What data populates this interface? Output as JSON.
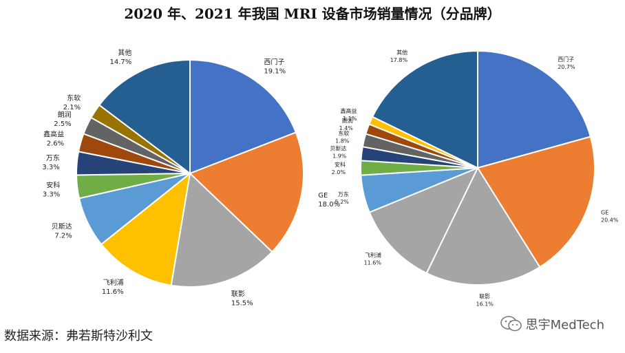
{
  "title": "2020 年、2021 年我国 MRI 设备市场销量情况（分品牌）",
  "source": "数据来源：弗若斯特沙利文",
  "watermark": "思宇MedTech",
  "chart_data": [
    {
      "type": "pie",
      "title": "2020",
      "categories": [
        "西门子",
        "GE",
        "联影",
        "飞利浦",
        "贝斯达",
        "安科",
        "万东",
        "鑫高益",
        "朗润",
        "东软",
        "其他"
      ],
      "values": [
        19.1,
        18.0,
        15.5,
        11.6,
        7.2,
        3.3,
        3.3,
        2.6,
        2.5,
        2.1,
        14.7
      ],
      "labels": [
        "19.1%",
        "18.0%",
        "15.5%",
        "11.6%",
        "7.2%",
        "3.3%",
        "3.3%",
        "2.6%",
        "2.5%",
        "2.1%",
        "14.7%"
      ],
      "colors": [
        "#4472C4",
        "#ED7D31",
        "#A5A5A5",
        "#FFC000",
        "#5B9BD5",
        "#70AD47",
        "#264478",
        "#9E480E",
        "#636363",
        "#997300",
        "#255E91"
      ]
    },
    {
      "type": "pie",
      "title": "2021",
      "categories": [
        "西门子",
        "GE",
        "联影",
        "飞利浦",
        "万东",
        "安科",
        "贝斯达",
        "东软",
        "朗润",
        "鑫高益",
        "其他"
      ],
      "values": [
        20.7,
        20.4,
        16.1,
        11.6,
        5.2,
        2.0,
        1.9,
        1.8,
        1.4,
        1.1,
        17.8
      ],
      "labels": [
        "20.7%",
        "20.4%",
        "16.1%",
        "11.6%",
        "5.2%",
        "2.0%",
        "1.9%",
        "1.8%",
        "1.4%",
        "1.1%",
        "17.8%"
      ],
      "colors": [
        "#4472C4",
        "#ED7D31",
        "#A5A5A5",
        "#A5A5A5",
        "#5B9BD5",
        "#70AD47",
        "#264478",
        "#636363",
        "#9E480E",
        "#FFC000",
        "#255E91"
      ]
    }
  ]
}
